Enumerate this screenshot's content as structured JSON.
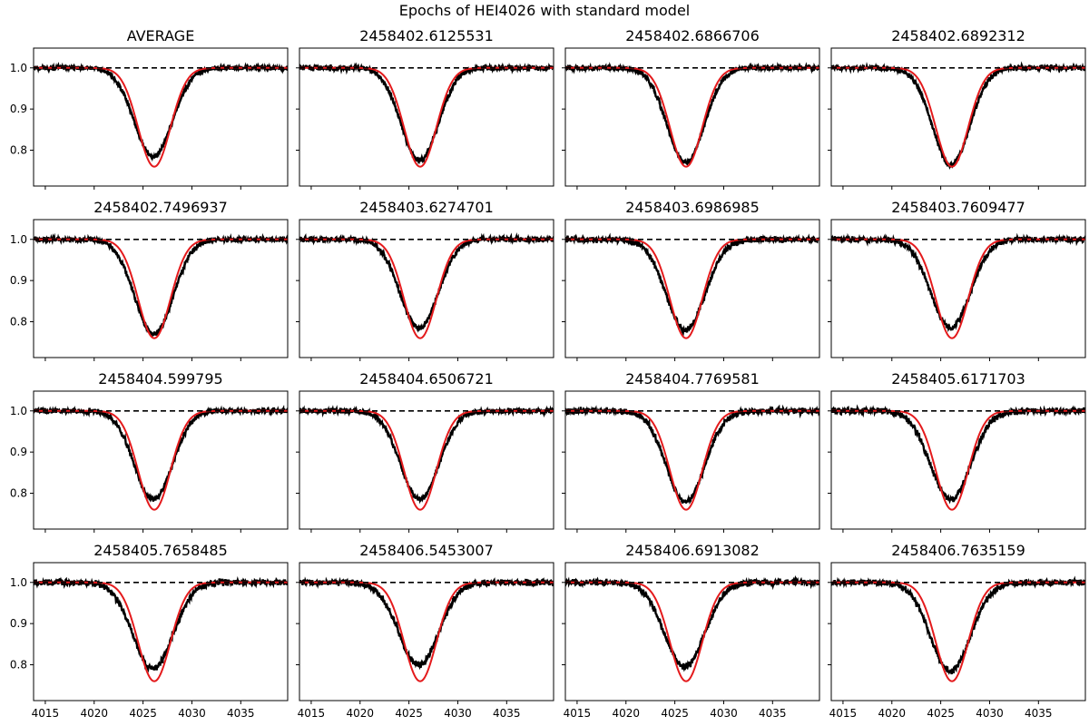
{
  "figure": {
    "title": "Epochs of HEI4026 with standard model"
  },
  "chart_data": {
    "type": "line",
    "title": "Epochs of HEI4026 with standard model",
    "layout": "4x4 grid, shared x and y axes",
    "xlabel": "",
    "ylabel": "",
    "xlim": [
      4013.8,
      4039.8
    ],
    "ylim": [
      0.713,
      1.048
    ],
    "x_ticks": [
      4015,
      4020,
      4025,
      4030,
      4035
    ],
    "x_tick_labels": [
      "4015",
      "4020",
      "4025",
      "4030",
      "4035"
    ],
    "y_ticks": [
      0.8,
      0.9,
      1.0
    ],
    "y_tick_labels": [
      "0.8",
      "0.9",
      "1.0"
    ],
    "grid": false,
    "reference_line": {
      "y": 1.0,
      "style": "dashed",
      "color": "#000000"
    },
    "series_styles": {
      "observed": {
        "color": "#000000"
      },
      "model": {
        "color": "#e41a1c"
      }
    },
    "model": {
      "center": 4026.15,
      "min": 0.76,
      "width": 1.65
    },
    "panels": [
      {
        "title": "AVERAGE",
        "observed": {
          "center": 4026.05,
          "min": 0.785,
          "width": 1.95,
          "noise": 0.004
        }
      },
      {
        "title": "2458402.6125531",
        "observed": {
          "center": 4026.1,
          "min": 0.775,
          "width": 1.9,
          "noise": 0.005
        }
      },
      {
        "title": "2458402.6866706",
        "observed": {
          "center": 4026.1,
          "min": 0.77,
          "width": 1.9,
          "noise": 0.005
        }
      },
      {
        "title": "2458402.6892312",
        "observed": {
          "center": 4026.05,
          "min": 0.765,
          "width": 1.9,
          "noise": 0.005
        }
      },
      {
        "title": "2458402.7496937",
        "observed": {
          "center": 4026.1,
          "min": 0.77,
          "width": 1.95,
          "noise": 0.005
        }
      },
      {
        "title": "2458403.6274701",
        "observed": {
          "center": 4026.05,
          "min": 0.785,
          "width": 1.95,
          "noise": 0.005
        }
      },
      {
        "title": "2458403.6986985",
        "observed": {
          "center": 4026.1,
          "min": 0.78,
          "width": 2.0,
          "noise": 0.006
        }
      },
      {
        "title": "2458403.7609477",
        "observed": {
          "center": 4026.0,
          "min": 0.785,
          "width": 2.0,
          "noise": 0.005
        }
      },
      {
        "title": "2458404.599795",
        "observed": {
          "center": 4026.05,
          "min": 0.785,
          "width": 1.95,
          "noise": 0.005
        }
      },
      {
        "title": "2458404.6506721",
        "observed": {
          "center": 4026.1,
          "min": 0.785,
          "width": 1.95,
          "noise": 0.005
        }
      },
      {
        "title": "2458404.7769581",
        "observed": {
          "center": 4026.1,
          "min": 0.78,
          "width": 1.95,
          "noise": 0.006
        }
      },
      {
        "title": "2458405.6171703",
        "observed": {
          "center": 4026.0,
          "min": 0.785,
          "width": 2.05,
          "noise": 0.006
        }
      },
      {
        "title": "2458405.7658485",
        "observed": {
          "center": 4026.0,
          "min": 0.79,
          "width": 2.05,
          "noise": 0.006
        }
      },
      {
        "title": "2458406.5453007",
        "observed": {
          "center": 4026.0,
          "min": 0.8,
          "width": 2.05,
          "noise": 0.006
        }
      },
      {
        "title": "2458406.6913082",
        "observed": {
          "center": 4026.0,
          "min": 0.795,
          "width": 2.05,
          "noise": 0.006
        }
      },
      {
        "title": "2458406.7635159",
        "observed": {
          "center": 4026.0,
          "min": 0.785,
          "width": 2.05,
          "noise": 0.006
        }
      }
    ]
  }
}
